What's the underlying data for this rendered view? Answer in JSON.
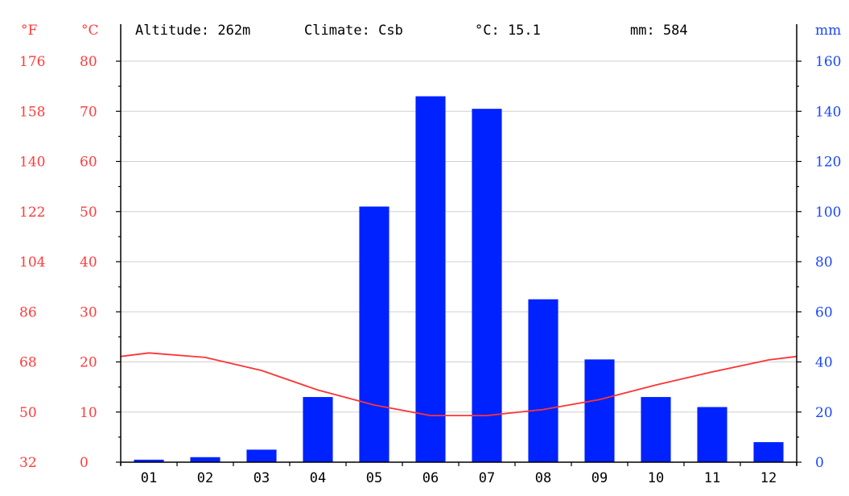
{
  "header": {
    "altitude": "Altitude: 262m",
    "climate": "Climate: Csb",
    "temp": "°C: 15.1",
    "precip": "mm: 584"
  },
  "colors": {
    "precip_bar": "#0022ff",
    "temp_line": "#ff3333",
    "temp_axis": "#ff3b3b",
    "precip_axis": "#1a46ff"
  },
  "chart_data": {
    "type": "bar",
    "categories": [
      "01",
      "02",
      "03",
      "04",
      "05",
      "06",
      "07",
      "08",
      "09",
      "10",
      "11",
      "12"
    ],
    "series": [
      {
        "type": "bar",
        "axis": "mm",
        "values": [
          1,
          2,
          5,
          26,
          102,
          146,
          141,
          65,
          41,
          26,
          22,
          8
        ]
      },
      {
        "type": "line",
        "axis": "°C",
        "values": [
          21.8,
          20.9,
          18.3,
          14.4,
          11.4,
          9.3,
          9.3,
          10.5,
          12.5,
          15.4,
          18.0,
          20.4
        ]
      }
    ],
    "axes": {
      "f": {
        "label": "°F",
        "ticks": [
          "176",
          "158",
          "140",
          "122",
          "104",
          "86",
          "68",
          "50",
          "32"
        ]
      },
      "c": {
        "label": "°C",
        "ticks": [
          "80",
          "70",
          "60",
          "50",
          "40",
          "30",
          "20",
          "10",
          "0"
        ],
        "range": [
          0,
          80
        ]
      },
      "mm": {
        "label": "mm",
        "ticks": [
          "160",
          "140",
          "120",
          "100",
          "80",
          "60",
          "40",
          "20",
          "0"
        ],
        "range": [
          0,
          160
        ]
      }
    },
    "grid": true
  }
}
